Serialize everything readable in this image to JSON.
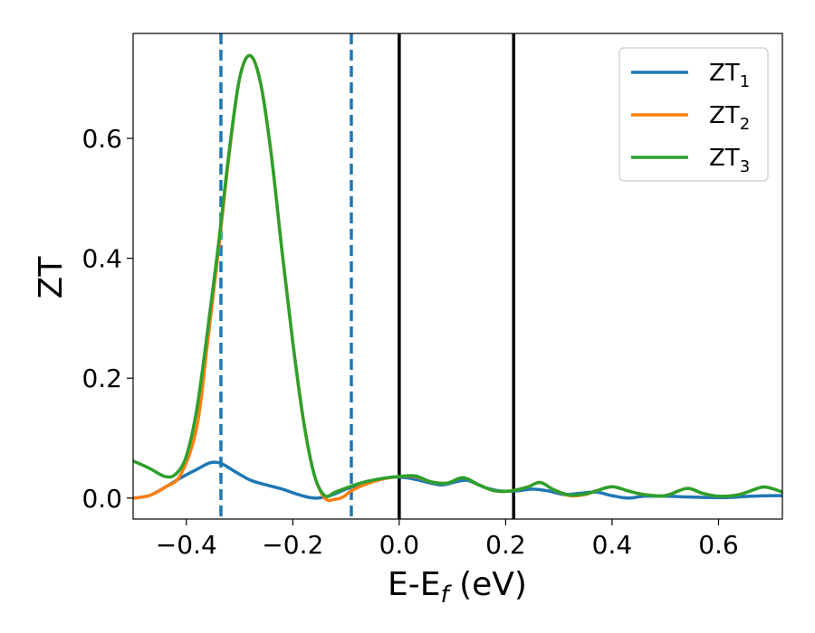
{
  "chart_data": {
    "type": "line",
    "xlabel": "E-E",
    "xlabel_sub": "f",
    "xlabel_unit": " (eV)",
    "ylabel": "ZT",
    "xlim": [
      -0.5,
      0.72
    ],
    "ylim": [
      -0.035,
      0.775
    ],
    "x_ticks": [
      -0.4,
      -0.2,
      0.0,
      0.2,
      0.4,
      0.6
    ],
    "x_tick_labels": [
      "−0.4",
      "−0.2",
      "0.0",
      "0.2",
      "0.4",
      "0.6"
    ],
    "y_ticks": [
      0.0,
      0.2,
      0.4,
      0.6
    ],
    "y_tick_labels": [
      "0.0",
      "0.2",
      "0.4",
      "0.6"
    ],
    "grid": false,
    "legend": "top-right",
    "vlines": [
      {
        "x": -0.335,
        "style": "dashed",
        "color": "#1f77b4"
      },
      {
        "x": -0.09,
        "style": "dashed",
        "color": "#1f77b4"
      },
      {
        "x": 0.0,
        "style": "solid",
        "color": "#000000"
      },
      {
        "x": 0.215,
        "style": "solid",
        "color": "#000000"
      }
    ],
    "series": [
      {
        "name": "ZT",
        "name_sub": "1",
        "color": "#1f77b4",
        "points": [
          [
            -0.5,
            0.0
          ],
          [
            -0.47,
            0.004
          ],
          [
            -0.44,
            0.018
          ],
          [
            -0.41,
            0.034
          ],
          [
            -0.38,
            0.048
          ],
          [
            -0.355,
            0.059
          ],
          [
            -0.335,
            0.058
          ],
          [
            -0.31,
            0.045
          ],
          [
            -0.28,
            0.03
          ],
          [
            -0.25,
            0.022
          ],
          [
            -0.22,
            0.015
          ],
          [
            -0.19,
            0.006
          ],
          [
            -0.16,
            0.0
          ],
          [
            -0.13,
            0.004
          ],
          [
            -0.1,
            0.015
          ],
          [
            -0.07,
            0.024
          ],
          [
            -0.04,
            0.031
          ],
          [
            -0.01,
            0.035
          ],
          [
            0.02,
            0.033
          ],
          [
            0.05,
            0.027
          ],
          [
            0.08,
            0.022
          ],
          [
            0.11,
            0.028
          ],
          [
            0.13,
            0.029
          ],
          [
            0.16,
            0.018
          ],
          [
            0.19,
            0.012
          ],
          [
            0.22,
            0.012
          ],
          [
            0.25,
            0.015
          ],
          [
            0.28,
            0.012
          ],
          [
            0.31,
            0.006
          ],
          [
            0.34,
            0.008
          ],
          [
            0.37,
            0.01
          ],
          [
            0.4,
            0.004
          ],
          [
            0.43,
            0.0
          ],
          [
            0.46,
            0.003
          ],
          [
            0.5,
            0.003
          ],
          [
            0.54,
            0.002
          ],
          [
            0.58,
            0.001
          ],
          [
            0.62,
            0.001
          ],
          [
            0.66,
            0.003
          ],
          [
            0.7,
            0.004
          ],
          [
            0.72,
            0.004
          ]
        ]
      },
      {
        "name": "ZT",
        "name_sub": "2",
        "color": "#ff7f0e",
        "points": [
          [
            -0.5,
            0.0
          ],
          [
            -0.47,
            0.004
          ],
          [
            -0.44,
            0.018
          ],
          [
            -0.41,
            0.04
          ],
          [
            -0.38,
            0.12
          ],
          [
            -0.36,
            0.26
          ],
          [
            -0.34,
            0.41
          ],
          [
            -0.32,
            0.57
          ],
          [
            -0.3,
            0.7
          ],
          [
            -0.28,
            0.738
          ],
          [
            -0.26,
            0.69
          ],
          [
            -0.24,
            0.57
          ],
          [
            -0.22,
            0.41
          ],
          [
            -0.2,
            0.26
          ],
          [
            -0.18,
            0.13
          ],
          [
            -0.16,
            0.04
          ],
          [
            -0.14,
            0.0
          ],
          [
            -0.12,
            -0.002
          ],
          [
            -0.105,
            0.002
          ],
          [
            -0.09,
            0.012
          ],
          [
            -0.06,
            0.024
          ],
          [
            -0.03,
            0.032
          ],
          [
            0.0,
            0.036
          ],
          [
            0.03,
            0.036
          ],
          [
            0.06,
            0.027
          ],
          [
            0.09,
            0.025
          ],
          [
            0.12,
            0.034
          ],
          [
            0.15,
            0.022
          ],
          [
            0.18,
            0.012
          ],
          [
            0.21,
            0.012
          ],
          [
            0.24,
            0.018
          ],
          [
            0.265,
            0.026
          ],
          [
            0.29,
            0.014
          ],
          [
            0.32,
            0.004
          ],
          [
            0.35,
            0.006
          ],
          [
            0.37,
            0.012
          ],
          [
            0.4,
            0.019
          ],
          [
            0.43,
            0.012
          ],
          [
            0.46,
            0.006
          ],
          [
            0.5,
            0.004
          ],
          [
            0.54,
            0.016
          ],
          [
            0.57,
            0.008
          ],
          [
            0.6,
            0.003
          ],
          [
            0.64,
            0.006
          ],
          [
            0.68,
            0.018
          ],
          [
            0.7,
            0.016
          ],
          [
            0.72,
            0.01
          ]
        ]
      },
      {
        "name": "ZT",
        "name_sub": "3",
        "color": "#2ca02c",
        "points": [
          [
            -0.5,
            0.062
          ],
          [
            -0.47,
            0.05
          ],
          [
            -0.44,
            0.036
          ],
          [
            -0.42,
            0.04
          ],
          [
            -0.4,
            0.07
          ],
          [
            -0.38,
            0.15
          ],
          [
            -0.36,
            0.28
          ],
          [
            -0.34,
            0.42
          ],
          [
            -0.32,
            0.575
          ],
          [
            -0.3,
            0.7
          ],
          [
            -0.28,
            0.738
          ],
          [
            -0.26,
            0.69
          ],
          [
            -0.24,
            0.57
          ],
          [
            -0.22,
            0.41
          ],
          [
            -0.2,
            0.26
          ],
          [
            -0.18,
            0.13
          ],
          [
            -0.16,
            0.04
          ],
          [
            -0.14,
            0.004
          ],
          [
            -0.12,
            0.01
          ],
          [
            -0.09,
            0.02
          ],
          [
            -0.06,
            0.028
          ],
          [
            -0.03,
            0.033
          ],
          [
            0.0,
            0.036
          ],
          [
            0.03,
            0.037
          ],
          [
            0.06,
            0.027
          ],
          [
            0.09,
            0.025
          ],
          [
            0.12,
            0.034
          ],
          [
            0.15,
            0.022
          ],
          [
            0.18,
            0.012
          ],
          [
            0.21,
            0.012
          ],
          [
            0.24,
            0.018
          ],
          [
            0.265,
            0.026
          ],
          [
            0.29,
            0.014
          ],
          [
            0.32,
            0.005
          ],
          [
            0.35,
            0.007
          ],
          [
            0.37,
            0.012
          ],
          [
            0.4,
            0.019
          ],
          [
            0.43,
            0.012
          ],
          [
            0.46,
            0.006
          ],
          [
            0.5,
            0.004
          ],
          [
            0.54,
            0.016
          ],
          [
            0.57,
            0.008
          ],
          [
            0.6,
            0.003
          ],
          [
            0.64,
            0.006
          ],
          [
            0.68,
            0.018
          ],
          [
            0.7,
            0.016
          ],
          [
            0.72,
            0.01
          ]
        ]
      }
    ]
  }
}
